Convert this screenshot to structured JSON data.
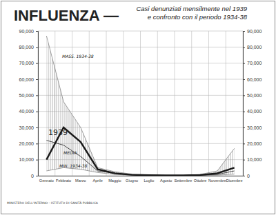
{
  "chart_data": {
    "type": "line",
    "title": "INFLUENZA —",
    "subtitle": [
      "Casi denunziati mensilmente nel 1939",
      "e confronto con il periodo 1934-38"
    ],
    "annotations": [
      "MINISTERO DELL'INTERNO - ISTITUTO DI SANITÀ PUBBLICA"
    ],
    "categories": [
      "Gennaio",
      "Febbraio",
      "Marzo",
      "Aprile",
      "Maggio",
      "Giugno",
      "Luglio",
      "Agosto",
      "Settembre",
      "Ottobre",
      "Novembre",
      "Dicembre"
    ],
    "series": [
      {
        "name": "1939",
        "color": "#1a1a1a",
        "line_style": "solid",
        "values": [
          10000,
          30000,
          21000,
          4000,
          1500,
          600,
          300,
          200,
          200,
          500,
          1500,
          5000
        ]
      },
      {
        "name": "MEDIA",
        "color": "#333333",
        "line_style": "solid",
        "values": [
          22000,
          19000,
          12000,
          3000,
          1500,
          600,
          300,
          200,
          200,
          400,
          800,
          3000
        ]
      },
      {
        "name": "MASS. 1934-38",
        "color": "#777777",
        "line_style": "solid",
        "values": [
          87000,
          46000,
          30000,
          5000,
          2500,
          1000,
          500,
          300,
          300,
          800,
          3000,
          17000
        ]
      },
      {
        "name": "MIN. 1934-38",
        "color": "#777777",
        "line_style": "solid",
        "values": [
          3000,
          5000,
          4000,
          2000,
          800,
          300,
          200,
          100,
          100,
          200,
          400,
          1000
        ]
      }
    ],
    "ylim": [
      0,
      90000
    ],
    "yticks": [
      0,
      {
        "value": 10000,
        "label": "10,000"
      },
      {
        "value": 20000,
        "label": "20,000"
      },
      {
        "value": 30000,
        "label": "30,000"
      },
      {
        "value": 40000,
        "label": "40,000"
      },
      {
        "value": 50000,
        "label": "50,000"
      },
      {
        "value": 60000,
        "label": "60,000"
      },
      {
        "value": 70000,
        "label": "70,000"
      },
      {
        "value": 80000,
        "label": "80,000"
      },
      {
        "value": 90000,
        "label": "90,000"
      }
    ],
    "grid": true
  }
}
